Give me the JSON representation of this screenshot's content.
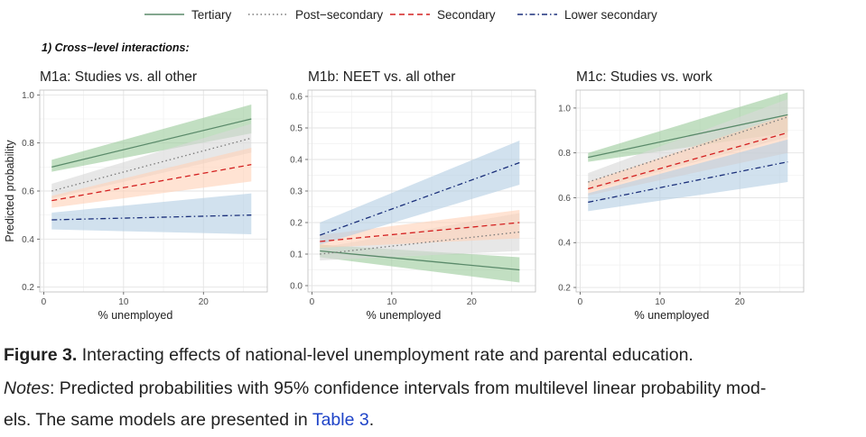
{
  "legend": [
    {
      "name": "Tertiary",
      "color": "#5a8a6a",
      "dash": "solid"
    },
    {
      "name": "Post−secondary",
      "color": "#7a7a7a",
      "dash": "dotted"
    },
    {
      "name": "Secondary",
      "color": "#d42020",
      "dash": "dashed"
    },
    {
      "name": "Lower secondary",
      "color": "#1a2f7a",
      "dash": "dashdot"
    }
  ],
  "ribbon_colors": {
    "Tertiary": "#9ccc9c",
    "Post−secondary": "#d8d8d8",
    "Secondary": "#ffd2b8",
    "Lower secondary": "#b4cfe3"
  },
  "section_title": "1) Cross−level interactions:",
  "chart_data": [
    {
      "type": "line",
      "title": "M1a: Studies vs. all other",
      "xlabel": "% unemployed",
      "ylabel": "Predicted probability",
      "xlim": [
        -0.5,
        28
      ],
      "ylim": [
        0.18,
        1.02
      ],
      "xticks": [
        0,
        10,
        20
      ],
      "yticks": [
        0.2,
        0.4,
        0.6,
        0.8,
        1.0
      ],
      "ytick_labels": [
        "0.2",
        "0.4",
        "0.6",
        "0.8",
        "1.0"
      ],
      "x": [
        1,
        26
      ],
      "series": [
        {
          "name": "Tertiary",
          "values": [
            0.7,
            0.9
          ],
          "lower": [
            0.68,
            0.84
          ],
          "upper": [
            0.73,
            0.96
          ]
        },
        {
          "name": "Post−secondary",
          "values": [
            0.6,
            0.82
          ],
          "lower": [
            0.57,
            0.76
          ],
          "upper": [
            0.63,
            0.88
          ]
        },
        {
          "name": "Secondary",
          "values": [
            0.56,
            0.71
          ],
          "lower": [
            0.53,
            0.64
          ],
          "upper": [
            0.58,
            0.78
          ]
        },
        {
          "name": "Lower secondary",
          "values": [
            0.48,
            0.5
          ],
          "lower": [
            0.44,
            0.42
          ],
          "upper": [
            0.51,
            0.59
          ]
        }
      ]
    },
    {
      "type": "line",
      "title": "M1b: NEET vs. all other",
      "xlabel": "% unemployed",
      "ylabel": "",
      "xlim": [
        -0.5,
        28
      ],
      "ylim": [
        -0.02,
        0.62
      ],
      "xticks": [
        0,
        10,
        20
      ],
      "yticks": [
        0.0,
        0.1,
        0.2,
        0.3,
        0.4,
        0.5,
        0.6
      ],
      "ytick_labels": [
        "0.0",
        "0.1",
        "0.2",
        "0.3",
        "0.4",
        "0.5",
        "0.6"
      ],
      "x": [
        1,
        26
      ],
      "series": [
        {
          "name": "Tertiary",
          "values": [
            0.11,
            0.05
          ],
          "lower": [
            0.09,
            0.01
          ],
          "upper": [
            0.13,
            0.09
          ]
        },
        {
          "name": "Post−secondary",
          "values": [
            0.1,
            0.17
          ],
          "lower": [
            0.08,
            0.11
          ],
          "upper": [
            0.12,
            0.23
          ]
        },
        {
          "name": "Secondary",
          "values": [
            0.14,
            0.2
          ],
          "lower": [
            0.12,
            0.15
          ],
          "upper": [
            0.16,
            0.24
          ]
        },
        {
          "name": "Lower secondary",
          "values": [
            0.16,
            0.39
          ],
          "lower": [
            0.13,
            0.32
          ],
          "upper": [
            0.2,
            0.46
          ]
        }
      ]
    },
    {
      "type": "line",
      "title": "M1c: Studies vs. work",
      "xlabel": "% unemployed",
      "ylabel": "",
      "xlim": [
        -0.5,
        28
      ],
      "ylim": [
        0.18,
        1.08
      ],
      "xticks": [
        0,
        10,
        20
      ],
      "yticks": [
        0.2,
        0.4,
        0.6,
        0.8,
        1.0
      ],
      "ytick_labels": [
        "0.2",
        "0.4",
        "0.6",
        "0.8",
        "1.0"
      ],
      "x": [
        1,
        26
      ],
      "series": [
        {
          "name": "Tertiary",
          "values": [
            0.78,
            0.97
          ],
          "lower": [
            0.76,
            0.89
          ],
          "upper": [
            0.8,
            1.07
          ]
        },
        {
          "name": "Post−secondary",
          "values": [
            0.67,
            0.96
          ],
          "lower": [
            0.63,
            0.87
          ],
          "upper": [
            0.71,
            1.04
          ]
        },
        {
          "name": "Secondary",
          "values": [
            0.64,
            0.89
          ],
          "lower": [
            0.61,
            0.8
          ],
          "upper": [
            0.67,
            0.97
          ]
        },
        {
          "name": "Lower secondary",
          "values": [
            0.58,
            0.76
          ],
          "lower": [
            0.54,
            0.67
          ],
          "upper": [
            0.62,
            0.86
          ]
        }
      ]
    }
  ],
  "caption": {
    "figure_label": "Figure 3.",
    "figure_text": " Interacting effects of national-level unemployment rate and parental education.",
    "notes_label": "Notes",
    "notes_text": ": Predicted probabilities with 95% confidence intervals from multilevel linear probability mod-",
    "line3_text": "els. The same models are presented in ",
    "link_text": "Table 3",
    "line3_end": "."
  }
}
